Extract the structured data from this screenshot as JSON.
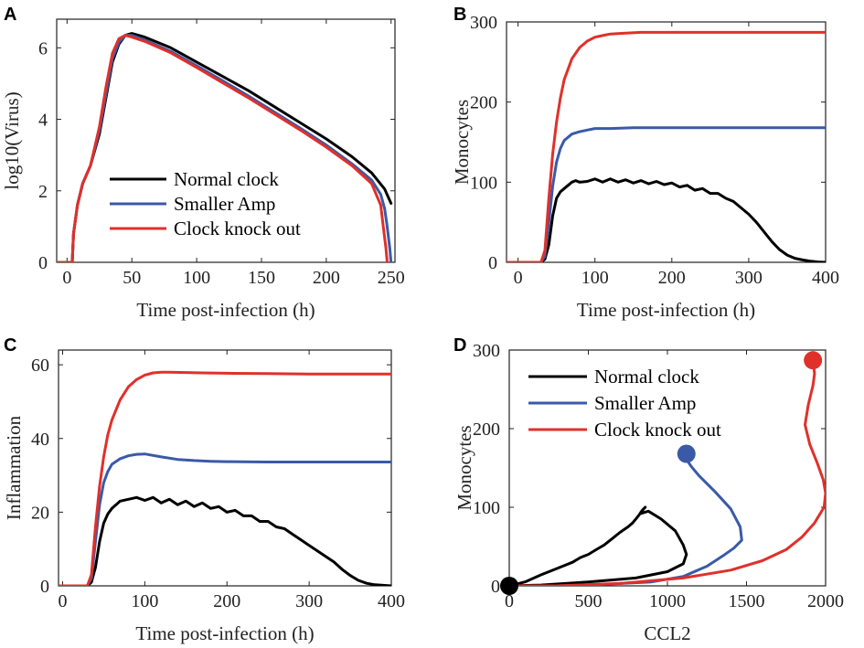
{
  "figure": {
    "panels": [
      {
        "letter": "A",
        "xlabel": "Time post-infection (h)",
        "ylabel": "log10(Virus)",
        "xticks": [
          "0",
          "50",
          "100",
          "150",
          "200",
          "250"
        ],
        "yticks": [
          "0",
          "2",
          "4",
          "6"
        ],
        "legend": [
          "Normal clock",
          "Smaller Amp",
          "Clock knock out"
        ]
      },
      {
        "letter": "B",
        "xlabel": "Time post-infection (h)",
        "ylabel": "Monocytes",
        "xticks": [
          "0",
          "100",
          "200",
          "300",
          "400"
        ],
        "yticks": [
          "0",
          "100",
          "200",
          "300"
        ]
      },
      {
        "letter": "C",
        "xlabel": "Time post-infection (h)",
        "ylabel": "Inflammation",
        "xticks": [
          "0",
          "100",
          "200",
          "300",
          "400"
        ],
        "yticks": [
          "0",
          "20",
          "40",
          "60"
        ]
      },
      {
        "letter": "D",
        "xlabel": "CCL2",
        "ylabel": "Monocytes",
        "xticks": [
          "0",
          "500",
          "1000",
          "1500",
          "2000"
        ],
        "yticks": [
          "0",
          "100",
          "200",
          "300"
        ],
        "legend": [
          "Normal clock",
          "Smaller Amp",
          "Clock knock out"
        ]
      }
    ]
  },
  "chart_data": [
    {
      "panel": "A",
      "type": "line",
      "xlabel": "Time post-infection (h)",
      "ylabel": "log10(Virus)",
      "xlim": [
        -8,
        253
      ],
      "ylim": [
        0,
        6.8
      ],
      "series": [
        {
          "name": "Normal clock",
          "color": "#000000",
          "x": [
            -8,
            4,
            5,
            8,
            12,
            18,
            25,
            30,
            35,
            40,
            45,
            50,
            60,
            80,
            100,
            120,
            140,
            160,
            180,
            200,
            220,
            235,
            245,
            250
          ],
          "y": [
            0,
            0,
            0.8,
            1.6,
            2.2,
            2.7,
            3.6,
            4.6,
            5.6,
            6.1,
            6.35,
            6.4,
            6.3,
            6.0,
            5.6,
            5.2,
            4.8,
            4.35,
            3.9,
            3.45,
            2.95,
            2.5,
            2.05,
            1.65
          ]
        },
        {
          "name": "Smaller Amp",
          "color": "#3a5aa8",
          "x": [
            -8,
            4,
            5,
            8,
            12,
            18,
            25,
            30,
            35,
            40,
            45,
            50,
            60,
            80,
            100,
            120,
            140,
            160,
            180,
            200,
            220,
            235,
            242,
            245,
            247,
            249,
            250
          ],
          "y": [
            0,
            0,
            0.8,
            1.6,
            2.2,
            2.7,
            3.7,
            4.7,
            5.7,
            6.15,
            6.35,
            6.35,
            6.22,
            5.9,
            5.5,
            5.08,
            4.65,
            4.2,
            3.75,
            3.28,
            2.75,
            2.3,
            1.9,
            1.5,
            1.0,
            0.4,
            0
          ]
        },
        {
          "name": "Clock knock out",
          "color": "#e0302a",
          "x": [
            -8,
            4,
            5,
            8,
            12,
            18,
            25,
            30,
            35,
            40,
            45,
            50,
            60,
            80,
            100,
            120,
            140,
            160,
            180,
            200,
            220,
            235,
            242,
            244,
            246,
            247
          ],
          "y": [
            0,
            0,
            0.8,
            1.6,
            2.2,
            2.7,
            3.8,
            4.9,
            5.85,
            6.25,
            6.35,
            6.3,
            6.18,
            5.86,
            5.45,
            5.02,
            4.6,
            4.15,
            3.7,
            3.22,
            2.7,
            2.2,
            1.6,
            1.0,
            0.4,
            0
          ]
        }
      ]
    },
    {
      "panel": "B",
      "type": "line",
      "xlabel": "Time post-infection (h)",
      "ylabel": "Monocytes",
      "xlim": [
        -15,
        400
      ],
      "ylim": [
        0,
        300
      ],
      "series": [
        {
          "name": "Normal clock",
          "color": "#000000",
          "x": [
            -15,
            30,
            35,
            40,
            45,
            50,
            55,
            60,
            65,
            70,
            75,
            80,
            90,
            100,
            110,
            120,
            130,
            140,
            150,
            160,
            170,
            180,
            190,
            200,
            210,
            220,
            230,
            240,
            250,
            260,
            270,
            280,
            290,
            300,
            310,
            320,
            330,
            340,
            350,
            360,
            370,
            380,
            390,
            400
          ],
          "y": [
            0,
            0,
            4,
            22,
            58,
            80,
            88,
            92,
            96,
            100,
            102,
            100,
            101,
            104,
            100,
            104,
            100,
            103,
            99,
            102,
            98,
            101,
            97,
            99,
            94,
            96,
            90,
            92,
            86,
            86,
            80,
            76,
            68,
            60,
            50,
            38,
            26,
            16,
            9,
            5,
            3,
            1.5,
            0.5,
            0
          ]
        },
        {
          "name": "Smaller Amp",
          "color": "#3a5aa8",
          "x": [
            -15,
            30,
            35,
            40,
            45,
            50,
            55,
            60,
            70,
            80,
            90,
            100,
            120,
            150,
            200,
            250,
            300,
            350,
            400
          ],
          "y": [
            0,
            0,
            8,
            50,
            95,
            125,
            142,
            152,
            160,
            163,
            165,
            167,
            167,
            168,
            168,
            168,
            168,
            168,
            168
          ]
        },
        {
          "name": "Clock knock out",
          "color": "#e0302a",
          "x": [
            -15,
            30,
            35,
            40,
            45,
            50,
            55,
            60,
            70,
            80,
            90,
            100,
            110,
            120,
            140,
            160,
            180,
            200,
            250,
            300,
            400
          ],
          "y": [
            0,
            0,
            15,
            80,
            135,
            175,
            205,
            228,
            254,
            268,
            276,
            281,
            283,
            285,
            286,
            287,
            287,
            287,
            287,
            287,
            287
          ]
        }
      ]
    },
    {
      "panel": "C",
      "type": "line",
      "xlabel": "Time post-infection (h)",
      "ylabel": "Inflammation",
      "xlim": [
        -5,
        400
      ],
      "ylim": [
        0,
        64
      ],
      "series": [
        {
          "name": "Normal clock",
          "color": "#000000",
          "x": [
            -5,
            30,
            35,
            40,
            45,
            50,
            55,
            60,
            65,
            70,
            80,
            90,
            100,
            110,
            120,
            130,
            140,
            150,
            160,
            170,
            180,
            190,
            200,
            210,
            220,
            230,
            240,
            250,
            260,
            270,
            280,
            290,
            300,
            310,
            320,
            330,
            340,
            350,
            360,
            370,
            380,
            400
          ],
          "y": [
            0,
            0,
            1,
            5,
            12,
            17,
            19.5,
            21,
            22,
            23,
            23.5,
            24,
            23.2,
            24,
            22.5,
            23.5,
            22,
            23,
            21.5,
            22.5,
            21,
            21.5,
            20,
            20.5,
            19,
            19,
            17.5,
            17.5,
            16,
            15.5,
            14,
            12.5,
            11,
            9.5,
            8,
            6.5,
            4.5,
            2.8,
            1.5,
            0.7,
            0.3,
            0
          ]
        },
        {
          "name": "Smaller Amp",
          "color": "#3a5aa8",
          "x": [
            -5,
            30,
            35,
            40,
            45,
            50,
            55,
            60,
            70,
            80,
            90,
            100,
            120,
            140,
            160,
            180,
            200,
            250,
            300,
            400
          ],
          "y": [
            0,
            0,
            2,
            12,
            22,
            28,
            31,
            33,
            34.5,
            35.3,
            35.7,
            35.8,
            35,
            34.3,
            34,
            33.8,
            33.7,
            33.6,
            33.6,
            33.6
          ]
        },
        {
          "name": "Clock knock out",
          "color": "#e0302a",
          "x": [
            -5,
            30,
            35,
            40,
            45,
            50,
            55,
            60,
            70,
            80,
            90,
            100,
            110,
            120,
            130,
            150,
            170,
            200,
            250,
            300,
            400
          ],
          "y": [
            0,
            0,
            3,
            16,
            27,
            35,
            41,
            45,
            50.5,
            54,
            56,
            57.2,
            57.8,
            58,
            58,
            57.9,
            57.8,
            57.7,
            57.6,
            57.5,
            57.5
          ]
        }
      ]
    },
    {
      "panel": "D",
      "type": "line",
      "xlabel": "CCL2",
      "ylabel": "Monocytes",
      "xlim": [
        0,
        2000
      ],
      "ylim": [
        0,
        300
      ],
      "series": [
        {
          "name": "Normal clock",
          "color": "#000000",
          "x": [
            0,
            100,
            200,
            300,
            400,
            450,
            500,
            550,
            600,
            650,
            700,
            750,
            780,
            800,
            820,
            840,
            860,
            850,
            830,
            880,
            960,
            1050,
            1100,
            1120,
            1100,
            1000,
            800,
            500,
            200,
            0
          ],
          "y": [
            0,
            5,
            14,
            22,
            30,
            36,
            40,
            46,
            52,
            60,
            68,
            75,
            80,
            85,
            90,
            96,
            100,
            98,
            92,
            95,
            85,
            70,
            52,
            40,
            28,
            18,
            10,
            5,
            1,
            0
          ]
        },
        {
          "name": "Smaller Amp",
          "color": "#3a5aa8",
          "x": [
            0,
            300,
            600,
            900,
            1100,
            1250,
            1350,
            1420,
            1470,
            1460,
            1400,
            1300,
            1200,
            1150,
            1130,
            1125,
            1120,
            1122,
            1125,
            1115,
            1120
          ],
          "y": [
            0,
            0,
            2,
            5,
            12,
            25,
            38,
            48,
            58,
            75,
            98,
            120,
            140,
            152,
            158,
            162,
            164,
            165,
            166,
            167,
            168
          ]
        },
        {
          "name": "Clock knock out",
          "color": "#e0302a",
          "x": [
            0,
            300,
            700,
            1100,
            1400,
            1600,
            1750,
            1850,
            1930,
            1990,
            2000,
            1985,
            1950,
            1900,
            1870,
            1890,
            1920,
            1930,
            1925,
            1920
          ],
          "y": [
            0,
            0,
            3,
            10,
            20,
            32,
            46,
            62,
            80,
            100,
            118,
            135,
            155,
            180,
            205,
            230,
            255,
            270,
            280,
            287
          ]
        }
      ],
      "end_markers": [
        {
          "x": 0,
          "y": 0,
          "color": "#000000"
        },
        {
          "x": 1120,
          "y": 168,
          "color": "#3a5aa8"
        },
        {
          "x": 1920,
          "y": 287,
          "color": "#e0302a"
        }
      ]
    }
  ]
}
